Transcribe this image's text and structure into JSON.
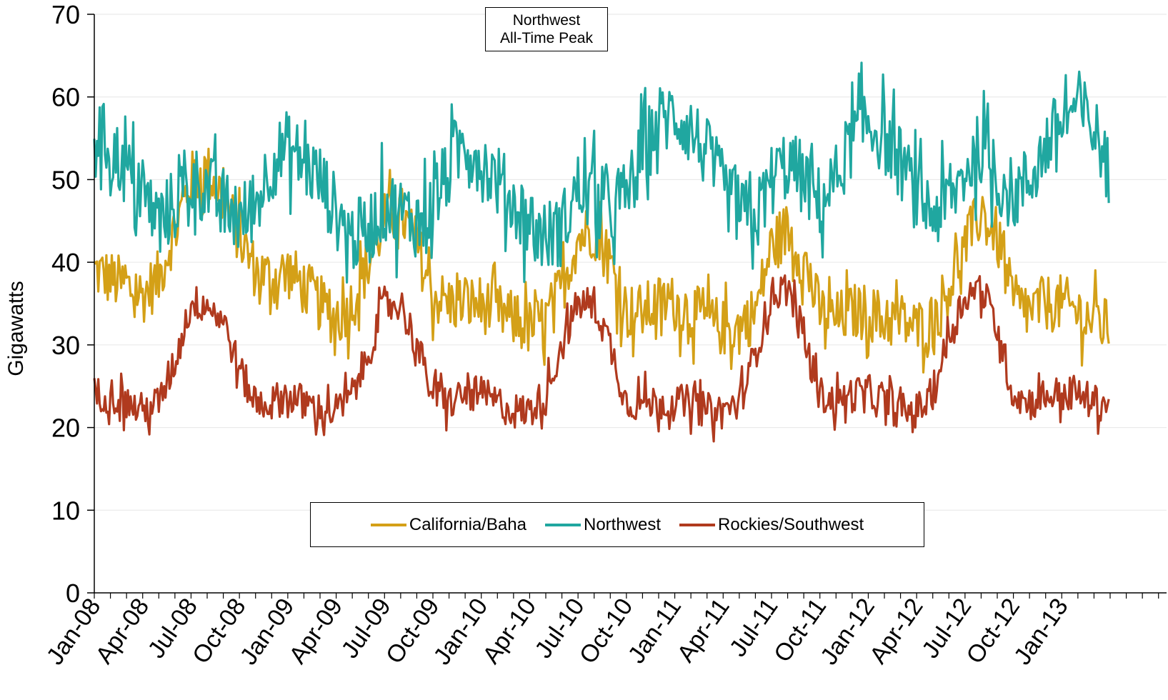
{
  "chart_data": {
    "type": "line",
    "title": "",
    "xlabel": "",
    "ylabel": "Gigawatts",
    "ylim": [
      0,
      70
    ],
    "yticks": [
      0,
      10,
      20,
      30,
      40,
      50,
      60,
      70
    ],
    "x_tick_labels": [
      "Jan-08",
      "Apr-08",
      "Jul-08",
      "Oct-08",
      "Jan-09",
      "Apr-09",
      "Jul-09",
      "Oct-09",
      "Jan-10",
      "Apr-10",
      "Jul-10",
      "Oct-10",
      "Jan-11",
      "Apr-11",
      "Jul-11",
      "Oct-11",
      "Jan-12",
      "Apr-12",
      "Jul-12",
      "Oct-12",
      "Jan-13"
    ],
    "grid": true,
    "legend_position": "bottom-center",
    "annotation": [
      "Northwest",
      "All-Time Peak"
    ],
    "series": [
      {
        "name": "California/Baha",
        "color": "#D4A017",
        "x": [
          "Jan-08",
          "Feb-08",
          "Mar-08",
          "Apr-08",
          "May-08",
          "Jun-08",
          "Jul-08",
          "Aug-08",
          "Sep-08",
          "Oct-08",
          "Nov-08",
          "Dec-08",
          "Jan-09",
          "Feb-09",
          "Mar-09",
          "Apr-09",
          "May-09",
          "Jun-09",
          "Jul-09",
          "Aug-09",
          "Sep-09",
          "Oct-09",
          "Nov-09",
          "Dec-09",
          "Jan-10",
          "Feb-10",
          "Mar-10",
          "Apr-10",
          "May-10",
          "Jun-10",
          "Jul-10",
          "Aug-10",
          "Sep-10",
          "Oct-10",
          "Nov-10",
          "Dec-10",
          "Jan-11",
          "Feb-11",
          "Mar-11",
          "Apr-11",
          "May-11",
          "Jun-11",
          "Jul-11",
          "Aug-11",
          "Sep-11",
          "Oct-11",
          "Nov-11",
          "Dec-11",
          "Jan-12",
          "Feb-12",
          "Mar-12",
          "Apr-12",
          "May-12",
          "Jun-12",
          "Jul-12",
          "Aug-12",
          "Sep-12",
          "Oct-12",
          "Nov-12",
          "Dec-12",
          "Jan-13",
          "Feb-13",
          "Mar-13",
          "Apr-13"
        ],
        "values": [
          39,
          38,
          37,
          36,
          38,
          44,
          50,
          51,
          48,
          43,
          39,
          38,
          39,
          37,
          35,
          33,
          35,
          40,
          45,
          46,
          42,
          36,
          35,
          35,
          35,
          34,
          33,
          32,
          33,
          37,
          43,
          44,
          40,
          34,
          34,
          35,
          35,
          34,
          33,
          32,
          32,
          34,
          42,
          44,
          40,
          34,
          33,
          34,
          34,
          33,
          33,
          32,
          33,
          37,
          42,
          46,
          43,
          35,
          34,
          35,
          35,
          34,
          33,
          32
        ],
        "spread": 3.5
      },
      {
        "name": "Northwest",
        "color": "#20A7A0",
        "x": [
          "Jan-08",
          "Feb-08",
          "Mar-08",
          "Apr-08",
          "May-08",
          "Jun-08",
          "Jul-08",
          "Aug-08",
          "Sep-08",
          "Oct-08",
          "Nov-08",
          "Dec-08",
          "Jan-09",
          "Feb-09",
          "Mar-09",
          "Apr-09",
          "May-09",
          "Jun-09",
          "Jul-09",
          "Aug-09",
          "Sep-09",
          "Oct-09",
          "Nov-09",
          "Dec-09",
          "Jan-10",
          "Feb-10",
          "Mar-10",
          "Apr-10",
          "May-10",
          "Jun-10",
          "Jul-10",
          "Aug-10",
          "Sep-10",
          "Oct-10",
          "Nov-10",
          "Dec-10",
          "Jan-11",
          "Feb-11",
          "Mar-11",
          "Apr-11",
          "May-11",
          "Jun-11",
          "Jul-11",
          "Aug-11",
          "Sep-11",
          "Oct-11",
          "Nov-11",
          "Dec-11",
          "Jan-12",
          "Feb-12",
          "Mar-12",
          "Apr-12",
          "May-12",
          "Jun-12",
          "Jul-12",
          "Aug-12",
          "Sep-12",
          "Oct-12",
          "Nov-12",
          "Dec-12",
          "Jan-13",
          "Feb-13",
          "Mar-13",
          "Apr-13"
        ],
        "values": [
          56,
          54,
          51,
          48,
          45,
          47,
          50,
          49,
          47,
          45,
          47,
          52,
          54,
          52,
          50,
          46,
          43,
          44,
          47,
          46,
          45,
          47,
          51,
          55,
          52,
          50,
          47,
          45,
          43,
          44,
          49,
          48,
          46,
          48,
          53,
          57,
          58,
          56,
          53,
          49,
          46,
          45,
          50,
          52,
          50,
          47,
          50,
          55,
          57,
          55,
          52,
          48,
          46,
          47,
          51,
          54,
          50,
          48,
          50,
          54,
          57,
          59,
          56,
          51
        ],
        "spread": 4.5
      },
      {
        "name": "Rockies/Southwest",
        "color": "#B03A1E",
        "x": [
          "Jan-08",
          "Feb-08",
          "Mar-08",
          "Apr-08",
          "May-08",
          "Jun-08",
          "Jul-08",
          "Aug-08",
          "Sep-08",
          "Oct-08",
          "Nov-08",
          "Dec-08",
          "Jan-09",
          "Feb-09",
          "Mar-09",
          "Apr-09",
          "May-09",
          "Jun-09",
          "Jul-09",
          "Aug-09",
          "Sep-09",
          "Oct-09",
          "Nov-09",
          "Dec-09",
          "Jan-10",
          "Feb-10",
          "Mar-10",
          "Apr-10",
          "May-10",
          "Jun-10",
          "Jul-10",
          "Aug-10",
          "Sep-10",
          "Oct-10",
          "Nov-10",
          "Dec-10",
          "Jan-11",
          "Feb-11",
          "Mar-11",
          "Apr-11",
          "May-11",
          "Jun-11",
          "Jul-11",
          "Aug-11",
          "Sep-11",
          "Oct-11",
          "Nov-11",
          "Dec-11",
          "Jan-12",
          "Feb-12",
          "Mar-12",
          "Apr-12",
          "May-12",
          "Jun-12",
          "Jul-12",
          "Aug-12",
          "Sep-12",
          "Oct-12",
          "Nov-12",
          "Dec-12",
          "Jan-13",
          "Feb-13",
          "Mar-13",
          "Apr-13"
        ],
        "values": [
          24,
          24,
          23,
          22,
          23,
          28,
          35,
          35,
          33,
          27,
          23,
          23,
          24,
          23,
          22,
          22,
          24,
          29,
          35,
          35,
          30,
          24,
          23,
          24,
          24,
          23,
          22,
          22,
          24,
          30,
          35,
          35,
          30,
          23,
          23,
          23,
          23,
          23,
          22,
          22,
          23,
          29,
          36,
          37,
          31,
          24,
          23,
          24,
          24,
          23,
          22,
          22,
          24,
          31,
          36,
          37,
          32,
          24,
          23,
          24,
          24,
          24,
          23,
          23
        ],
        "spread": 2.2
      }
    ]
  }
}
